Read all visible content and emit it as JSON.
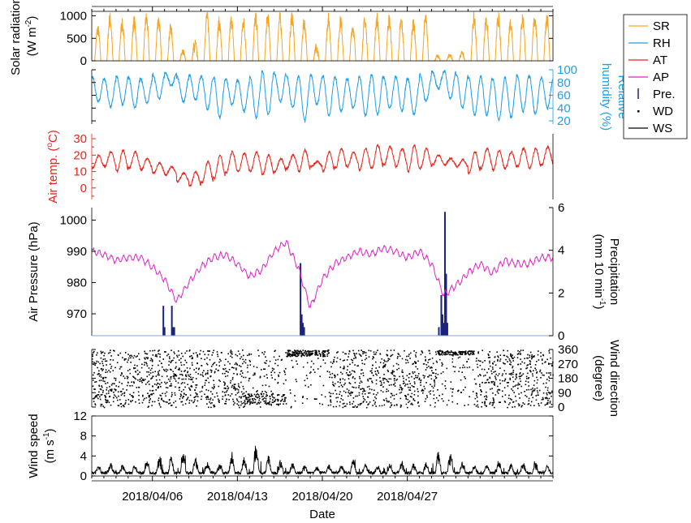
{
  "chart_data": [
    {
      "type": "line",
      "panel": "solar-radiation",
      "ylabel_line1": "Solar radiation",
      "ylabel_line2": "(W m",
      "ylabel_sup": "-2",
      "ylabel_close": ")",
      "yticks": [
        "0",
        "500",
        "1000"
      ],
      "ylim": [
        0,
        1100
      ],
      "series": [
        {
          "name": "SR",
          "color": "#f5a623",
          "note": "daily cycles, peaks 600-1050 W m-2"
        }
      ],
      "daily_peaks": [
        750,
        1000,
        860,
        930,
        1000,
        970,
        780,
        220,
        420,
        1060,
        900,
        950,
        920,
        1000,
        1020,
        1000,
        1050,
        900,
        320,
        980,
        930,
        800,
        950,
        1000,
        970,
        920,
        870,
        980,
        120,
        150,
        200,
        1000,
        950,
        1000,
        900,
        1000,
        1000,
        1000
      ]
    },
    {
      "type": "line",
      "panel": "relative-humidity",
      "ylabel_line1": "Relative",
      "ylabel_line2": "humidity (%)",
      "yticks": [
        "20",
        "40",
        "60",
        "80",
        "100"
      ],
      "ylim": [
        15,
        100
      ],
      "series": [
        {
          "name": "RH",
          "color": "#1f9fe6"
        }
      ],
      "daily_min": [
        50,
        42,
        45,
        40,
        48,
        55,
        75,
        50,
        52,
        38,
        25,
        45,
        35,
        25,
        30,
        50,
        40,
        20,
        45,
        28,
        35,
        40,
        28,
        30,
        40,
        35,
        30,
        50,
        70,
        55,
        40,
        30,
        28,
        22,
        25,
        35,
        30,
        40
      ],
      "daily_max": [
        88,
        85,
        90,
        88,
        85,
        92,
        95,
        88,
        92,
        90,
        88,
        85,
        82,
        90,
        98,
        95,
        90,
        88,
        92,
        90,
        88,
        85,
        90,
        92,
        88,
        90,
        85,
        92,
        98,
        98,
        92,
        88,
        90,
        85,
        88,
        92,
        90,
        88
      ]
    },
    {
      "type": "line",
      "panel": "air-temperature",
      "ylabel_line1": "Air temp. (",
      "ylabel_sup": "o",
      "ylabel_close": "C)",
      "yticks": [
        "0",
        "10",
        "20",
        "30"
      ],
      "ylim": [
        -7,
        33
      ],
      "series": [
        {
          "name": "AT",
          "color": "#e8251b"
        }
      ],
      "daily_min": [
        12,
        13,
        10,
        12,
        11,
        9,
        8,
        4,
        1,
        3,
        6,
        9,
        10,
        10,
        8,
        10,
        12,
        10,
        13,
        10,
        12,
        13,
        11,
        12,
        14,
        13,
        10,
        12,
        14,
        14,
        13,
        9,
        12,
        11,
        12,
        13,
        12,
        14
      ],
      "daily_max": [
        20,
        22,
        23,
        22,
        18,
        15,
        13,
        9,
        10,
        16,
        20,
        22,
        21,
        22,
        20,
        18,
        20,
        23,
        16,
        22,
        24,
        22,
        24,
        26,
        25,
        24,
        26,
        24,
        20,
        18,
        17,
        22,
        24,
        23,
        22,
        24,
        24,
        25
      ]
    },
    {
      "type": "line",
      "panel": "air-pressure",
      "ylabel": "Air Pressure (hPa)",
      "yticks": [
        "970",
        "980",
        "990",
        "1000"
      ],
      "ylim": [
        963,
        1004
      ],
      "y2label_line1": "Precipitation",
      "y2label_line2": "(mm 10 min",
      "y2label_sup": "-1",
      "y2label_close": ")",
      "y2ticks": [
        "0",
        "2",
        "4",
        "6"
      ],
      "y2lim": [
        0,
        6
      ],
      "series": [
        {
          "name": "AP",
          "color": "#e020c8"
        },
        {
          "name": "Pre.",
          "color": "#1a237e"
        }
      ],
      "ap_daily": [
        990,
        989,
        987,
        988,
        988,
        985,
        981,
        974,
        980,
        985,
        988,
        989,
        986,
        982,
        984,
        990,
        993,
        985,
        972,
        981,
        986,
        988,
        990,
        989,
        991,
        990,
        988,
        990,
        986,
        976,
        979,
        983,
        986,
        983,
        987,
        986,
        986,
        988
      ],
      "precipitation_events": [
        {
          "day": 5.9,
          "mm": 1.4
        },
        {
          "day": 6.0,
          "mm": 0.4
        },
        {
          "day": 6.6,
          "mm": 1.4
        },
        {
          "day": 6.7,
          "mm": 0.4
        },
        {
          "day": 6.8,
          "mm": 0.4
        },
        {
          "day": 17.2,
          "mm": 3.4
        },
        {
          "day": 17.3,
          "mm": 1.0
        },
        {
          "day": 17.4,
          "mm": 0.6
        },
        {
          "day": 17.5,
          "mm": 0.4
        },
        {
          "day": 28.6,
          "mm": 0.4
        },
        {
          "day": 28.8,
          "mm": 1.9
        },
        {
          "day": 28.9,
          "mm": 1.0
        },
        {
          "day": 29.0,
          "mm": 0.6
        },
        {
          "day": 29.1,
          "mm": 5.8
        },
        {
          "day": 29.2,
          "mm": 2.9
        },
        {
          "day": 29.3,
          "mm": 0.6
        }
      ]
    },
    {
      "type": "scatter",
      "panel": "wind-direction",
      "y2label_line1": "Wind direction",
      "y2label_line2": "(degree)",
      "y2ticks": [
        "0",
        "90",
        "180",
        "270",
        "360"
      ],
      "y2lim": [
        0,
        360
      ],
      "series": [
        {
          "name": "WD",
          "color": "#000000",
          "note": "scattered 0-360 degree readings"
        }
      ]
    },
    {
      "type": "line",
      "panel": "wind-speed",
      "ylabel_line1": "Wind speed",
      "ylabel_line2": "(m s",
      "ylabel_sup": "-1",
      "ylabel_close": ")",
      "yticks": [
        "0",
        "4",
        "8",
        "12"
      ],
      "ylim": [
        0,
        12
      ],
      "series": [
        {
          "name": "WS",
          "color": "#000000"
        }
      ],
      "daily_peak": [
        1.8,
        2.5,
        2.2,
        2.0,
        3.5,
        4.0,
        5.8,
        5.2,
        4.0,
        3.0,
        2.5,
        4.8,
        4.2,
        7.0,
        5.0,
        3.5,
        2.8,
        2.0,
        1.8,
        2.2,
        2.0,
        3.5,
        2.5,
        2.0,
        2.8,
        3.0,
        2.5,
        2.8,
        6.0,
        5.0,
        3.0,
        2.0,
        2.5,
        3.0,
        2.5,
        2.8,
        3.0,
        2.2
      ]
    }
  ],
  "x_axis": {
    "label": "Date",
    "ticks": [
      "2018/04/06",
      "2018/04/13",
      "2018/04/20",
      "2018/04/27"
    ]
  },
  "legend": {
    "items": [
      {
        "label": "SR",
        "color": "#f5a623",
        "kind": "line"
      },
      {
        "label": "RH",
        "color": "#1f9fe6",
        "kind": "line"
      },
      {
        "label": "AT",
        "color": "#e8251b",
        "kind": "line"
      },
      {
        "label": "AP",
        "color": "#e020c8",
        "kind": "line"
      },
      {
        "label": "Pre.",
        "color": "#1a237e",
        "kind": "bar"
      },
      {
        "label": "WD",
        "color": "#000000",
        "kind": "dot"
      },
      {
        "label": "WS",
        "color": "#000000",
        "kind": "line"
      }
    ]
  }
}
